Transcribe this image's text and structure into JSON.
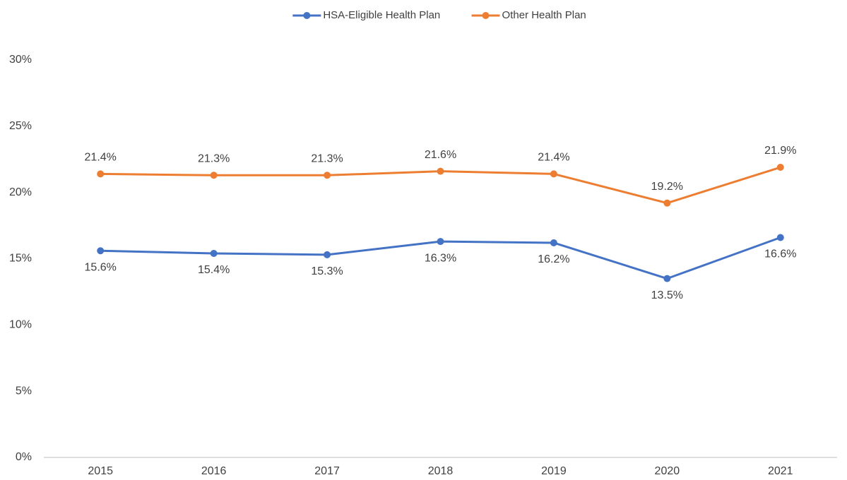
{
  "chart_data": {
    "type": "line",
    "categories": [
      "2015",
      "2016",
      "2017",
      "2018",
      "2019",
      "2020",
      "2021"
    ],
    "series": [
      {
        "name": "HSA-Eligible Health Plan",
        "color": "#4472c4",
        "values": [
          15.6,
          15.4,
          15.3,
          16.3,
          16.2,
          13.5,
          16.6
        ],
        "value_labels": [
          "15.6%",
          "15.4%",
          "15.3%",
          "16.3%",
          "16.2%",
          "13.5%",
          "16.6%"
        ]
      },
      {
        "name": "Other Health Plan",
        "color": "#ed7d31",
        "values": [
          21.4,
          21.3,
          21.3,
          21.6,
          21.4,
          19.2,
          21.9
        ],
        "value_labels": [
          "21.4%",
          "21.3%",
          "21.3%",
          "21.6%",
          "21.4%",
          "19.2%",
          "21.9%"
        ]
      }
    ],
    "ylim": [
      0,
      30
    ],
    "yticks": [
      {
        "value": 0,
        "label": "0%"
      },
      {
        "value": 5,
        "label": "5%"
      },
      {
        "value": 10,
        "label": "10%"
      },
      {
        "value": 15,
        "label": "15%"
      },
      {
        "value": 20,
        "label": "20%"
      },
      {
        "value": 25,
        "label": "25%"
      },
      {
        "value": 30,
        "label": "30%"
      }
    ],
    "grid": false,
    "legend": "top"
  }
}
